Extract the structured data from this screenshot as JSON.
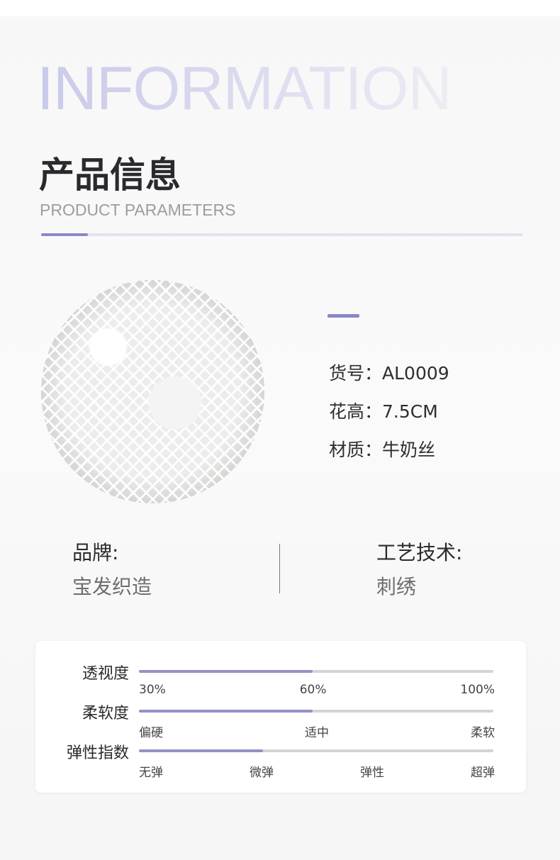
{
  "header": {
    "watermark": "INFORMATION",
    "title": "产品信息",
    "subtitle": "PRODUCT PARAMETERS"
  },
  "specs": [
    {
      "label": "货号：",
      "value": "AL0009"
    },
    {
      "label": "花高：",
      "value": "7.5CM"
    },
    {
      "label": "材质：",
      "value": "牛奶丝"
    }
  ],
  "brand": {
    "label": "品牌:",
    "value": "宝发织造"
  },
  "craft": {
    "label": "工艺技术:",
    "value": "刺绣"
  },
  "ratings": [
    {
      "label": "透视度",
      "fill": 0.49,
      "ticks": [
        "30%",
        "60%",
        "100%"
      ]
    },
    {
      "label": "柔软度",
      "fill": 0.49,
      "ticks": [
        "偏硬",
        "适中",
        "柔软"
      ]
    },
    {
      "label": "弹性指数",
      "fill": 0.35,
      "ticks": [
        "无弹",
        "微弹",
        "弹性",
        "超弹"
      ]
    }
  ],
  "colors": {
    "accent": "#8a88c6",
    "fill": "#9391c8",
    "track": "#d4d4d6"
  },
  "image": {
    "subject": "white embroidered lace on brown background"
  }
}
